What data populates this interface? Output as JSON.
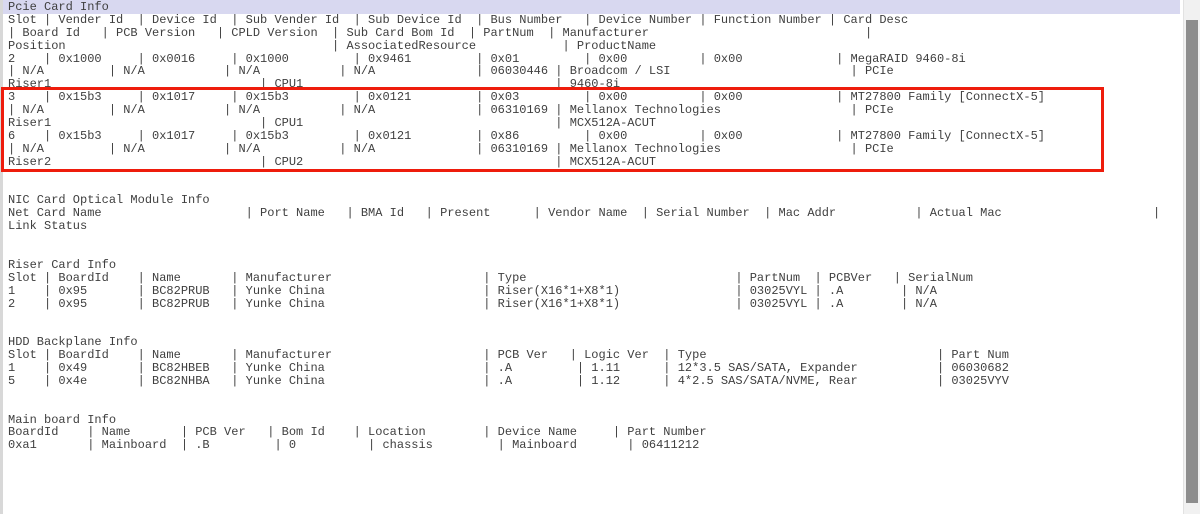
{
  "colors": {
    "background": "#ffffff",
    "text": "#3f3f3f",
    "selection_band": "#d8d8f0",
    "annotation_red": "#ee1c0c",
    "scrollbar_track": "#f1f1f1",
    "scrollbar_thumb": "#8d8d8d",
    "left_edge": "#d8d8d8"
  },
  "annotation": {
    "shape": "rectangle",
    "color": "#ee1c0c",
    "covers": "PCIe slot 3 and slot 6 rows"
  },
  "sections": {
    "pcie": {
      "lines": [
        "Pcie Card Info",
        "Slot | Vender Id  | Device Id  | Sub Vender Id  | Sub Device Id  | Bus Number   | Device Number | Function Number | Card Desc",
        "| Board Id   | PCB Version   | CPLD Version  | Sub Card Bom Id  | PartNum  | Manufacturer                              |",
        "Position                                     | AssociatedResource            | ProductName",
        "2    | 0x1000     | 0x0016     | 0x1000         | 0x9461         | 0x01         | 0x00          | 0x00             | MegaRAID 9460-8i",
        "| N/A         | N/A           | N/A           | N/A              | 06030446 | Broadcom / LSI                         | PCIe",
        "Riser1                             | CPU1                                   | 9460-8i",
        "3    | 0x15b3     | 0x1017     | 0x15b3         | 0x0121         | 0x03         | 0x00          | 0x00             | MT27800 Family [ConnectX-5]",
        "| N/A         | N/A           | N/A           | N/A              | 06310169 | Mellanox Technologies                  | PCIe",
        "Riser1                             | CPU1                                   | MCX512A-ACUT",
        "6    | 0x15b3     | 0x1017     | 0x15b3         | 0x0121         | 0x86         | 0x00          | 0x00             | MT27800 Family [ConnectX-5]",
        "| N/A         | N/A           | N/A           | N/A              | 06310169 | Mellanox Technologies                  | PCIe",
        "Riser2                             | CPU2                                   | MCX512A-ACUT"
      ],
      "columns": [
        "Slot",
        "Vender Id",
        "Device Id",
        "Sub Vender Id",
        "Sub Device Id",
        "Bus Number",
        "Device Number",
        "Function Number",
        "Card Desc",
        "Board Id",
        "PCB Version",
        "CPLD Version",
        "Sub Card Bom Id",
        "PartNum",
        "Manufacturer",
        "Position",
        "AssociatedResource",
        "ProductName"
      ],
      "records": [
        {
          "slot": "2",
          "vender_id": "0x1000",
          "device_id": "0x0016",
          "sub_vender_id": "0x1000",
          "sub_device_id": "0x9461",
          "bus_number": "0x01",
          "device_number": "0x00",
          "function_number": "0x00",
          "card_desc": "MegaRAID 9460-8i",
          "board_id": "N/A",
          "pcb_version": "N/A",
          "cpld_version": "N/A",
          "sub_card_bom_id": "N/A",
          "part_num": "06030446",
          "manufacturer": "Broadcom / LSI",
          "position": "Riser1",
          "associated_resource": "CPU1",
          "product_name": "9460-8i",
          "highlighted": false
        },
        {
          "slot": "3",
          "vender_id": "0x15b3",
          "device_id": "0x1017",
          "sub_vender_id": "0x15b3",
          "sub_device_id": "0x0121",
          "bus_number": "0x03",
          "device_number": "0x00",
          "function_number": "0x00",
          "card_desc": "MT27800 Family [ConnectX-5]",
          "board_id": "N/A",
          "pcb_version": "N/A",
          "cpld_version": "N/A",
          "sub_card_bom_id": "N/A",
          "part_num": "06310169",
          "manufacturer": "Mellanox Technologies",
          "position": "Riser1",
          "associated_resource": "CPU1",
          "product_name": "MCX512A-ACUT",
          "highlighted": true
        },
        {
          "slot": "6",
          "vender_id": "0x15b3",
          "device_id": "0x1017",
          "sub_vender_id": "0x15b3",
          "sub_device_id": "0x0121",
          "bus_number": "0x86",
          "device_number": "0x00",
          "function_number": "0x00",
          "card_desc": "MT27800 Family [ConnectX-5]",
          "board_id": "N/A",
          "pcb_version": "N/A",
          "cpld_version": "N/A",
          "sub_card_bom_id": "N/A",
          "part_num": "06310169",
          "manufacturer": "Mellanox Technologies",
          "position": "Riser2",
          "associated_resource": "CPU2",
          "product_name": "MCX512A-ACUT",
          "highlighted": true
        }
      ]
    },
    "nic": {
      "lines": [
        "NIC Card Optical Module Info",
        "Net Card Name                    | Port Name   | BMA Id   | Present      | Vendor Name  | Serial Number  | Mac Addr           | Actual Mac                     |",
        "Link Status"
      ],
      "columns": [
        "Net Card Name",
        "Port Name",
        "BMA Id",
        "Present",
        "Vendor Name",
        "Serial Number",
        "Mac Addr",
        "Actual Mac",
        "Link Status"
      ],
      "records": []
    },
    "riser": {
      "lines": [
        "Riser Card Info",
        "Slot | BoardId    | Name       | Manufacturer                     | Type                             | PartNum  | PCBVer   | SerialNum",
        "1    | 0x95       | BC82PRUB   | Yunke China                      | Riser(X16*1+X8*1)                | 03025VYL | .A        | N/A",
        "2    | 0x95       | BC82PRUB   | Yunke China                      | Riser(X16*1+X8*1)                | 03025VYL | .A        | N/A"
      ],
      "columns": [
        "Slot",
        "BoardId",
        "Name",
        "Manufacturer",
        "Type",
        "PartNum",
        "PCBVer",
        "SerialNum"
      ],
      "records": [
        {
          "slot": "1",
          "board_id": "0x95",
          "name": "BC82PRUB",
          "manufacturer": "Yunke China",
          "type": "Riser(X16*1+X8*1)",
          "part_num": "03025VYL",
          "pcb_ver": ".A",
          "serial_num": "N/A"
        },
        {
          "slot": "2",
          "board_id": "0x95",
          "name": "BC82PRUB",
          "manufacturer": "Yunke China",
          "type": "Riser(X16*1+X8*1)",
          "part_num": "03025VYL",
          "pcb_ver": ".A",
          "serial_num": "N/A"
        }
      ]
    },
    "hdd": {
      "lines": [
        "HDD Backplane Info",
        "Slot | BoardId    | Name       | Manufacturer                     | PCB Ver   | Logic Ver  | Type                                | Part Num",
        "1    | 0x49       | BC82HBEB   | Yunke China                      | .A         | 1.11      | 12*3.5 SAS/SATA, Expander           | 06030682",
        "5    | 0x4e       | BC82NHBA   | Yunke China                      | .A         | 1.12      | 4*2.5 SAS/SATA/NVME, Rear           | 03025VYV"
      ],
      "columns": [
        "Slot",
        "BoardId",
        "Name",
        "Manufacturer",
        "PCB Ver",
        "Logic Ver",
        "Type",
        "Part Num"
      ],
      "records": [
        {
          "slot": "1",
          "board_id": "0x49",
          "name": "BC82HBEB",
          "manufacturer": "Yunke China",
          "pcb_ver": ".A",
          "logic_ver": "1.11",
          "type": "12*3.5 SAS/SATA, Expander",
          "part_num": "06030682"
        },
        {
          "slot": "5",
          "board_id": "0x4e",
          "name": "BC82NHBA",
          "manufacturer": "Yunke China",
          "pcb_ver": ".A",
          "logic_ver": "1.12",
          "type": "4*2.5 SAS/SATA/NVME, Rear",
          "part_num": "03025VYV"
        }
      ]
    },
    "mainboard": {
      "lines": [
        "Main board Info",
        "BoardId    | Name       | PCB Ver   | Bom Id    | Location        | Device Name     | Part Number",
        "0xa1       | Mainboard  | .B         | 0          | chassis         | Mainboard       | 06411212"
      ],
      "columns": [
        "BoardId",
        "Name",
        "PCB Ver",
        "Bom Id",
        "Location",
        "Device Name",
        "Part Number"
      ],
      "records": [
        {
          "board_id": "0xa1",
          "name": "Mainboard",
          "pcb_ver": ".B",
          "bom_id": "0",
          "location": "chassis",
          "device_name": "Mainboard",
          "part_number": "06411212"
        }
      ]
    }
  }
}
